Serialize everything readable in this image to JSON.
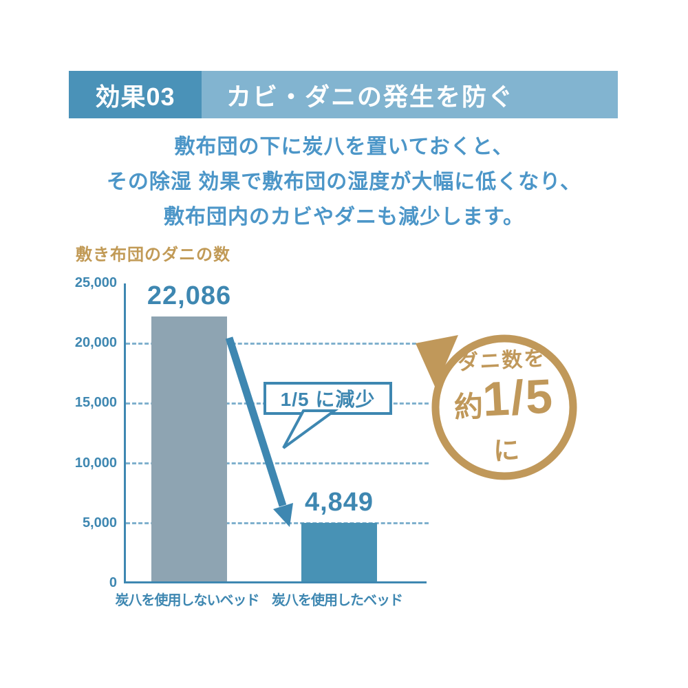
{
  "header": {
    "badge_label": "効果03",
    "title": "カビ・ダニの発生を防ぐ",
    "badge_bg": "#4a92b8",
    "title_bg": "#82b4d0",
    "text_color": "#ffffff"
  },
  "intro": {
    "lines": [
      "敷布団の下に炭八を置いておくと、",
      "その除湿 効果で敷布団の湿度が大幅に低くなり、",
      "敷布団内のカビやダニも減少します。"
    ],
    "color": "#4c96c8"
  },
  "chart_data": {
    "type": "bar",
    "title": "敷き布団のダニの数",
    "title_color": "#c19a56",
    "categories": [
      "炭八を使用しないベッド",
      "炭八を使用したベッド"
    ],
    "values": [
      22086,
      4849
    ],
    "value_labels": [
      "22,086",
      "4,849"
    ],
    "bar_colors": [
      "#8ea4b2",
      "#4892b5"
    ],
    "ylim": [
      0,
      25000
    ],
    "yticks": [
      0,
      5000,
      10000,
      15000,
      20000,
      25000
    ],
    "ytick_labels": [
      "0",
      "5,000",
      "10,000",
      "15,000",
      "20,000",
      "25,000"
    ],
    "grid": "dashed-horizontal",
    "legend": "none",
    "axis_color": "#3e87b1",
    "annotation": "1/5 に減少",
    "arrow": "from top of first bar down to top of second bar"
  },
  "callout": {
    "label": "1/5 に減少",
    "border_color": "#3e87b1"
  },
  "badge": {
    "line1": "ダニ数を",
    "line2_prefix": "約",
    "line2_value": "1/5",
    "line3": "に",
    "color": "#c0985a"
  }
}
